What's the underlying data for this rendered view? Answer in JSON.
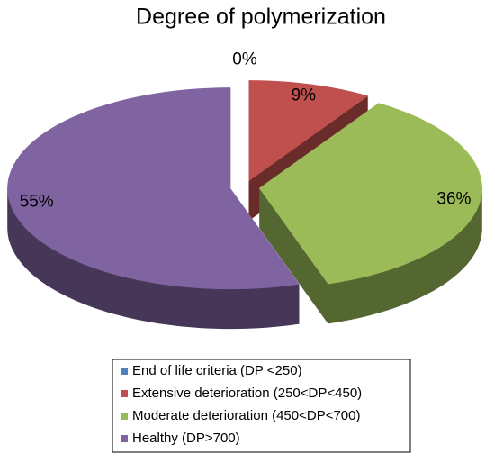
{
  "chart_data": {
    "type": "pie",
    "title": "Degree of polymerization",
    "categories": [
      "End of life criteria (DP <250)",
      "Extensive deterioration (250<DP<450)",
      "Moderate deterioration (450<DP<700)",
      "Healthy (DP>700)"
    ],
    "values": [
      0,
      9,
      36,
      55
    ],
    "value_labels": [
      "0%",
      "9%",
      "36%",
      "55%"
    ],
    "colors": [
      "#4f81bd",
      "#c0504d",
      "#9bbb59",
      "#8064a2"
    ],
    "legend": "bottom"
  }
}
